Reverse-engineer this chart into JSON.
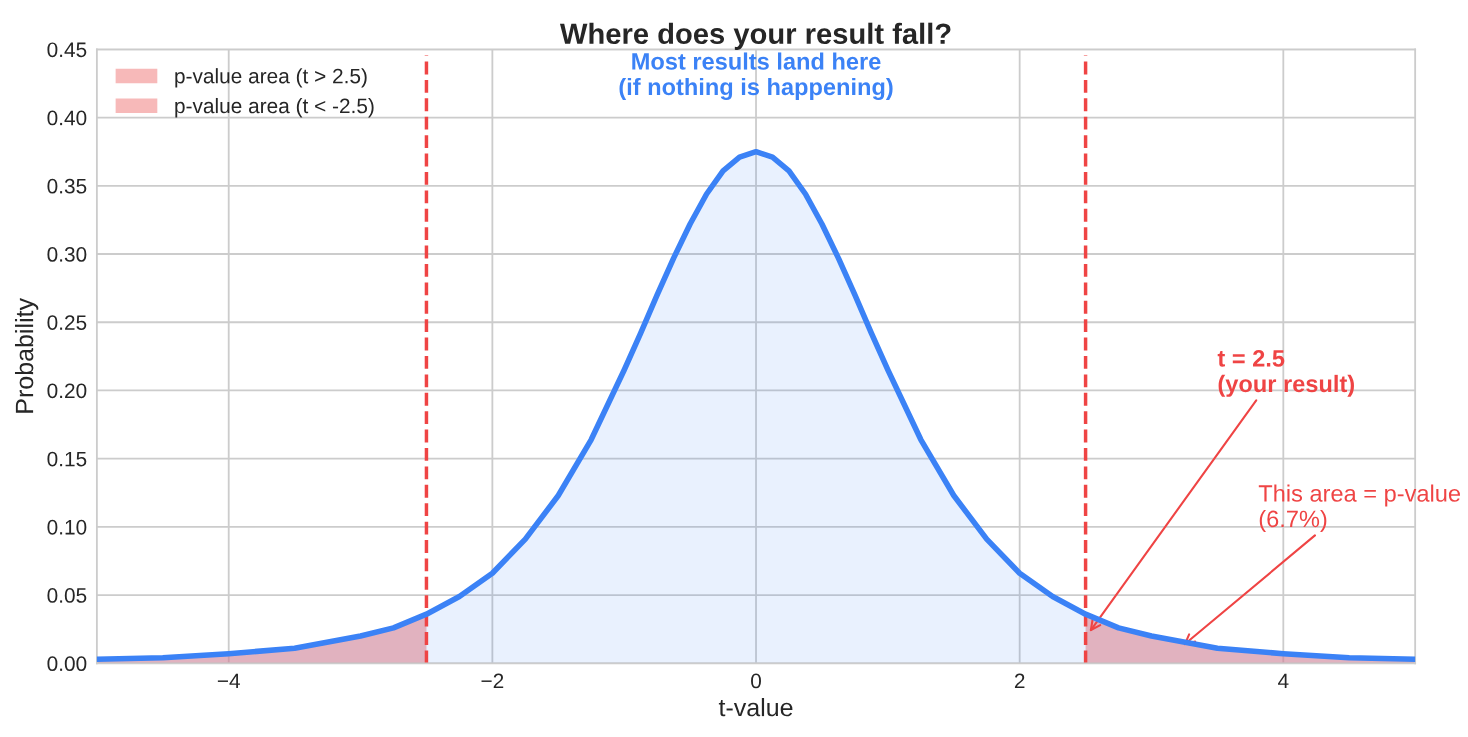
{
  "chart_data": {
    "type": "area",
    "title": "Where does your result fall?",
    "xlabel": "t-value",
    "ylabel": "Probability",
    "xlim": [
      -5,
      5
    ],
    "xticks": [
      {
        "value": -4,
        "label": "−4"
      },
      {
        "value": -2,
        "label": "−2"
      },
      0,
      2,
      4
    ],
    "ylim": [
      0,
      0.45
    ],
    "yticks": [
      {
        "value": 0,
        "label": "0.00"
      },
      {
        "value": 0.05,
        "label": "0.05"
      },
      {
        "value": 0.1,
        "label": "0.10"
      },
      {
        "value": 0.15,
        "label": "0.15"
      },
      {
        "value": 0.2,
        "label": "0.20"
      },
      {
        "value": 0.25,
        "label": "0.25"
      },
      {
        "value": 0.3,
        "label": "0.30"
      },
      {
        "value": 0.35,
        "label": "0.35"
      },
      {
        "value": 0.4,
        "label": "0.40"
      },
      {
        "value": 0.45,
        "label": "0.45"
      }
    ],
    "grid": true,
    "legend": "top left",
    "marker": "none",
    "series": [
      {
        "name": "p-value area (t > 2.5)",
        "color": "#f08080",
        "x": [
          2.5,
          2.75,
          3,
          3.5,
          4,
          4.5,
          5
        ],
        "values": [
          0.036,
          0.026,
          0.02,
          0.011,
          0.007,
          0.004,
          0.003
        ]
      },
      {
        "name": "p-value area (t < -2.5)",
        "color": "#f08080",
        "x": [
          -5,
          -4.5,
          -4,
          -3.5,
          -3,
          -2.75,
          -2.5
        ],
        "values": [
          0.003,
          0.004,
          0.007,
          0.011,
          0.02,
          0.026,
          0.036
        ]
      },
      {
        "color": "#3b82f6",
        "x": [
          -5,
          -4.5,
          -4,
          -3.5,
          -3,
          -2.75,
          -2.5,
          -2.25,
          -2,
          -1.75,
          -1.5,
          -1.25,
          -1,
          -0.875,
          -0.75,
          -0.625,
          -0.5,
          -0.375,
          -0.25,
          -0.125,
          0,
          0.125,
          0.25,
          0.375,
          0.5,
          0.625,
          0.75,
          0.875,
          1,
          1.25,
          1.5,
          1.75,
          2,
          2.25,
          2.5,
          2.75,
          3,
          3.5,
          4,
          4.5,
          5
        ],
        "values": [
          0.003,
          0.004,
          0.007,
          0.011,
          0.02,
          0.026,
          0.036,
          0.049,
          0.066,
          0.091,
          0.123,
          0.164,
          0.215,
          0.242,
          0.27,
          0.297,
          0.322,
          0.344,
          0.361,
          0.371,
          0.375,
          0.371,
          0.361,
          0.344,
          0.322,
          0.297,
          0.27,
          0.242,
          0.215,
          0.164,
          0.123,
          0.091,
          0.066,
          0.049,
          0.036,
          0.026,
          0.02,
          0.011,
          0.007,
          0.004,
          0.003
        ]
      }
    ],
    "ref_lines": [
      {
        "axis": "x",
        "value": -2.5,
        "color": "#ef4444",
        "line_style": "dashed"
      },
      {
        "axis": "x",
        "value": 2.5,
        "color": "#ef4444",
        "line_style": "dashed"
      }
    ],
    "annotations": [
      "Most results land here\n(if nothing is happening)",
      {
        "text": "t = 2.5\n(your result)",
        "x": 2.53,
        "y": 0.023
      },
      {
        "text": "This area = p-value\n(6.7%)",
        "x": 3.24,
        "y": 0.013
      }
    ]
  }
}
